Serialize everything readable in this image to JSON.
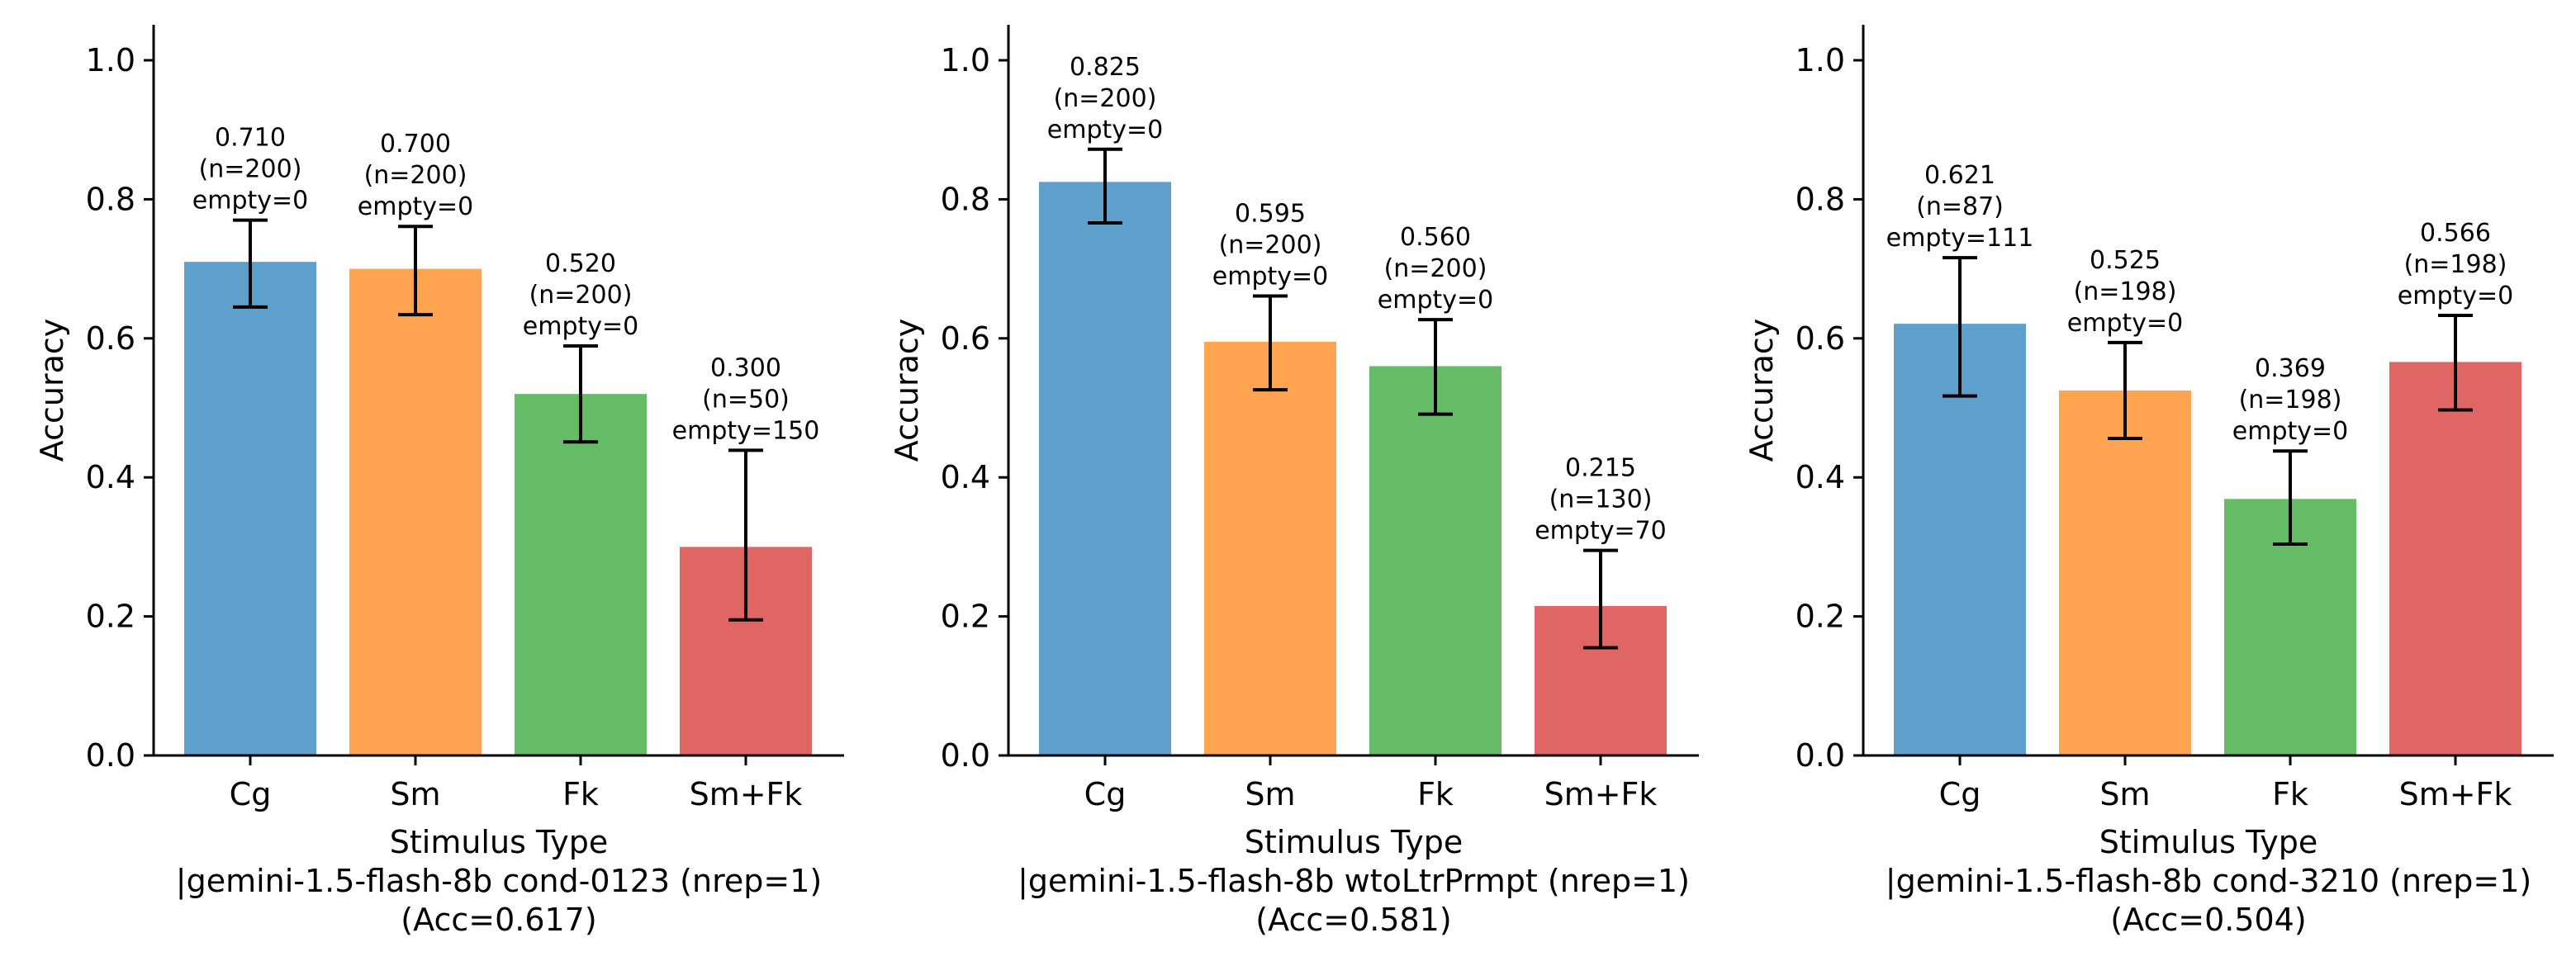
{
  "colors": {
    "Cg": "#5f9fcc",
    "Sm": "#ffa552",
    "Fk": "#66bb66",
    "Sm+Fk": "#e06565",
    "errorbar": "#000000",
    "axis": "#000000"
  },
  "chart_data": [
    {
      "type": "bar",
      "categories": [
        "Cg",
        "Sm",
        "Fk",
        "Sm+Fk"
      ],
      "values": [
        0.71,
        0.7,
        0.52,
        0.3
      ],
      "error_low": [
        0.645,
        0.634,
        0.451,
        0.195
      ],
      "error_high": [
        0.77,
        0.761,
        0.589,
        0.439
      ],
      "bar_labels": [
        [
          "0.710",
          "(n=200)",
          "empty=0"
        ],
        [
          "0.700",
          "(n=200)",
          "empty=0"
        ],
        [
          "0.520",
          "(n=200)",
          "empty=0"
        ],
        [
          "0.300",
          "(n=50)",
          "empty=150"
        ]
      ],
      "xlabel_lines": [
        "Stimulus Type",
        "|gemini-1.5-flash-8b cond-0123 (nrep=1)",
        "(Acc=0.617)"
      ],
      "ylabel": "Accuracy",
      "ylim": [
        0,
        1.05
      ],
      "yticks": [
        "0.0",
        "0.2",
        "0.4",
        "0.6",
        "0.8",
        "1.0"
      ],
      "grid": false
    },
    {
      "type": "bar",
      "categories": [
        "Cg",
        "Sm",
        "Fk",
        "Sm+Fk"
      ],
      "values": [
        0.825,
        0.595,
        0.56,
        0.215
      ],
      "error_low": [
        0.766,
        0.526,
        0.491,
        0.155
      ],
      "error_high": [
        0.872,
        0.661,
        0.627,
        0.295
      ],
      "bar_labels": [
        [
          "0.825",
          "(n=200)",
          "empty=0"
        ],
        [
          "0.595",
          "(n=200)",
          "empty=0"
        ],
        [
          "0.560",
          "(n=200)",
          "empty=0"
        ],
        [
          "0.215",
          "(n=130)",
          "empty=70"
        ]
      ],
      "xlabel_lines": [
        "Stimulus Type",
        "|gemini-1.5-flash-8b wtoLtrPrmpt (nrep=1)",
        "(Acc=0.581)"
      ],
      "ylabel": "Accuracy",
      "ylim": [
        0,
        1.05
      ],
      "yticks": [
        "0.0",
        "0.2",
        "0.4",
        "0.6",
        "0.8",
        "1.0"
      ],
      "grid": false
    },
    {
      "type": "bar",
      "categories": [
        "Cg",
        "Sm",
        "Fk",
        "Sm+Fk"
      ],
      "values": [
        0.621,
        0.525,
        0.369,
        0.566
      ],
      "error_low": [
        0.517,
        0.456,
        0.304,
        0.497
      ],
      "error_high": [
        0.716,
        0.594,
        0.438,
        0.633
      ],
      "bar_labels": [
        [
          "0.621",
          "(n=87)",
          "empty=111"
        ],
        [
          "0.525",
          "(n=198)",
          "empty=0"
        ],
        [
          "0.369",
          "(n=198)",
          "empty=0"
        ],
        [
          "0.566",
          "(n=198)",
          "empty=0"
        ]
      ],
      "xlabel_lines": [
        "Stimulus Type",
        "|gemini-1.5-flash-8b cond-3210 (nrep=1)",
        "(Acc=0.504)"
      ],
      "ylabel": "Accuracy",
      "ylim": [
        0,
        1.05
      ],
      "yticks": [
        "0.0",
        "0.2",
        "0.4",
        "0.6",
        "0.8",
        "1.0"
      ],
      "grid": false
    }
  ]
}
